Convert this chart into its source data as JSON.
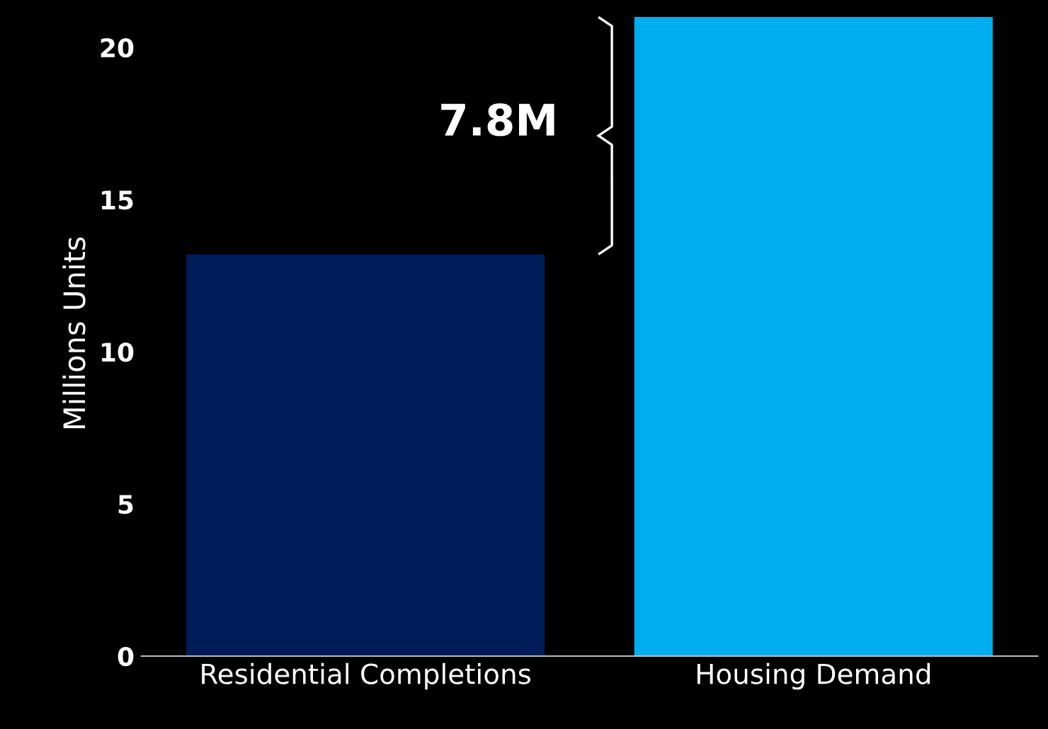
{
  "chart_data": {
    "type": "bar",
    "ylabel": "Millions Units",
    "categories": [
      "Residential Completions",
      "Housing Demand"
    ],
    "values": [
      13.2,
      21.0
    ],
    "colors": [
      "#001c58",
      "#00adef"
    ],
    "ylim": [
      0,
      21.2
    ],
    "yticks": [
      0,
      5,
      10,
      15,
      20
    ],
    "grid": false,
    "annotations": [
      "7.8M"
    ]
  }
}
